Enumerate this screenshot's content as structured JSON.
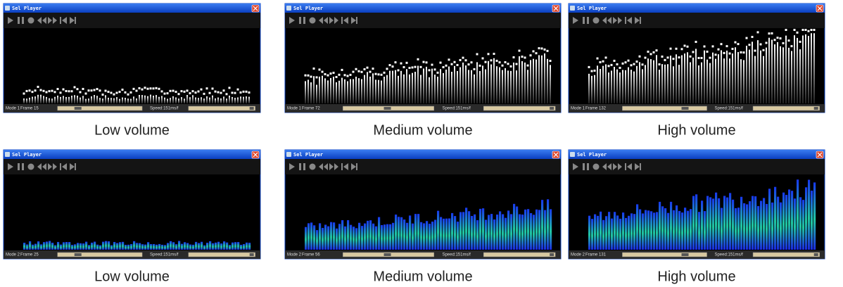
{
  "windows": [
    {
      "title": "Sel Player",
      "mode": "Mode 1",
      "frame": "Frame 15",
      "speed": "Speed:151ms/f",
      "caption": "Low volume"
    },
    {
      "title": "Sel Player",
      "mode": "Mode 1",
      "frame": "Frame 72",
      "speed": "Speed:151ms/f",
      "caption": "Medium volume"
    },
    {
      "title": "Sel Player",
      "mode": "Mode 1",
      "frame": "Frame 132",
      "speed": "Speed:151ms/f",
      "caption": "High volume"
    },
    {
      "title": "Sel Player",
      "mode": "Mode 2",
      "frame": "Frame 25",
      "speed": "Speed:151ms/f",
      "caption": "Low volume"
    },
    {
      "title": "Sel Player",
      "mode": "Mode 2",
      "frame": "Frame 56",
      "speed": "Speed:151ms/f",
      "caption": "Medium volume"
    },
    {
      "title": "Sel Player",
      "mode": "Mode 2",
      "frame": "Frame 131",
      "speed": "Speed:151ms/f",
      "caption": "High volume"
    }
  ]
}
